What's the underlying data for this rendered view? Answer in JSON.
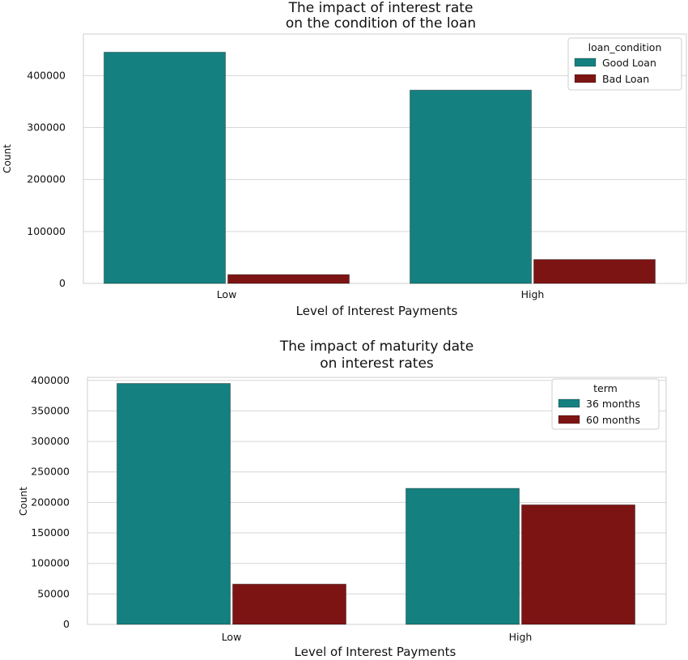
{
  "chart_data": [
    {
      "type": "bar",
      "title": "The impact of interest rate\non the condition of the loan",
      "xlabel": "Level of Interest Payments",
      "ylabel": "Count",
      "categories": [
        "Low",
        "High"
      ],
      "series": [
        {
          "name": "Good Loan",
          "values": [
            445000,
            372000
          ],
          "color": "#148080"
        },
        {
          "name": "Bad Loan",
          "values": [
            17000,
            46000
          ],
          "color": "#7d1414"
        }
      ],
      "legend_title": "loan_condition",
      "legend_position": "top-right",
      "ylim": [
        0,
        480000
      ],
      "yticks": [
        0,
        100000,
        200000,
        300000,
        400000
      ],
      "ytick_labels": [
        "0",
        "100000",
        "200000",
        "300000",
        "400000"
      ],
      "grid": true
    },
    {
      "type": "bar",
      "title": "The impact of maturity date\non interest rates",
      "xlabel": "Level of Interest Payments",
      "ylabel": "Count",
      "categories": [
        "Low",
        "High"
      ],
      "series": [
        {
          "name": "36 months",
          "values": [
            395000,
            223000
          ],
          "color": "#148080"
        },
        {
          "name": "60 months",
          "values": [
            66000,
            196000
          ],
          "color": "#7d1414"
        }
      ],
      "legend_title": "term",
      "legend_position": "top-right",
      "ylim": [
        0,
        405000
      ],
      "yticks": [
        0,
        50000,
        100000,
        150000,
        200000,
        250000,
        300000,
        350000,
        400000
      ],
      "ytick_labels": [
        "0",
        "50000",
        "100000",
        "150000",
        "200000",
        "250000",
        "300000",
        "350000",
        "400000"
      ],
      "grid": true
    }
  ]
}
